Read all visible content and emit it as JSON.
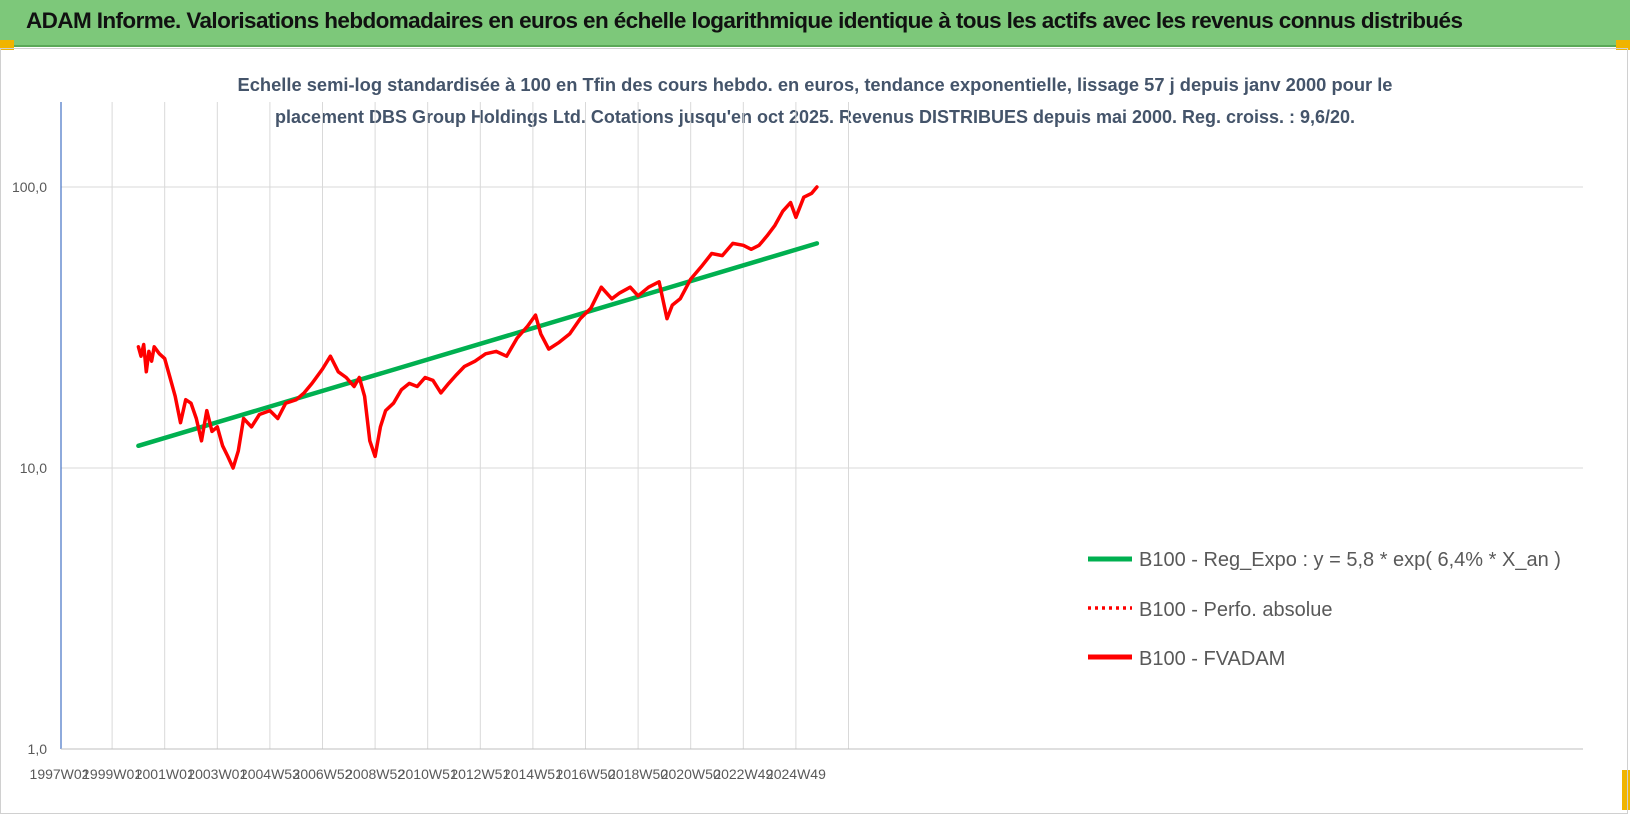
{
  "header": {
    "title": "ADAM Informe. Valorisations hebdomadaires en euros en échelle logarithmique identique à tous les actifs avec les revenus connus distribués"
  },
  "colors": {
    "header_bg": "#7dc87a",
    "regression": "#00b050",
    "perf": "#ff0000",
    "fvadam": "#ff0000"
  },
  "chart_data": {
    "type": "line",
    "title": "",
    "subtitle_lines": [
      "Echelle semi-log standardisée à 100 en Tfin des cours hebdo. en euros, tendance exponentielle, lissage 57 j depuis janv 2000 pour le",
      "placement DBS Group Holdings Ltd. Cotations jusqu'en oct 2025. Revenus DISTRIBUES depuis mai 2000. Reg. croiss. : 9,6/20."
    ],
    "y_scale": "log",
    "ylim": [
      1,
      200
    ],
    "y_ticks": [
      "1,0",
      "10,0",
      "100,0"
    ],
    "x_ticks": [
      "1997W02",
      "1999W01",
      "2001W01",
      "2003W01",
      "2004W53",
      "2006W52",
      "2008W52",
      "2010W51",
      "2012W51",
      "2014W51",
      "2016W50",
      "2018W50",
      "2020W50",
      "2022W49",
      "2024W49"
    ],
    "legend_position": "bottom-right",
    "grid": true,
    "series": [
      {
        "name": "B100 - Reg_Expo : y = 5,8 * exp( 6,4% *  X_an )",
        "style": "solid",
        "x": [
          2000.0,
          2025.8
        ],
        "y": [
          12.0,
          63.0
        ]
      },
      {
        "name": "B100 - Perfo. absolue",
        "style": "dotted",
        "x": [],
        "y": []
      },
      {
        "name": "B100 - FVADAM",
        "style": "solid",
        "x": [
          2000.0,
          2000.1,
          2000.2,
          2000.3,
          2000.4,
          2000.5,
          2000.6,
          2000.8,
          2001.0,
          2001.2,
          2001.4,
          2001.6,
          2001.8,
          2002.0,
          2002.2,
          2002.4,
          2002.6,
          2002.8,
          2003.0,
          2003.2,
          2003.4,
          2003.6,
          2003.8,
          2004.0,
          2004.3,
          2004.6,
          2005.0,
          2005.3,
          2005.6,
          2006.0,
          2006.3,
          2006.6,
          2007.0,
          2007.3,
          2007.6,
          2007.9,
          2008.2,
          2008.4,
          2008.6,
          2008.8,
          2009.0,
          2009.2,
          2009.4,
          2009.7,
          2010.0,
          2010.3,
          2010.6,
          2010.9,
          2011.2,
          2011.5,
          2011.8,
          2012.1,
          2012.4,
          2012.8,
          2013.2,
          2013.6,
          2014.0,
          2014.4,
          2014.8,
          2015.1,
          2015.3,
          2015.6,
          2016.0,
          2016.4,
          2016.8,
          2017.2,
          2017.6,
          2018.0,
          2018.3,
          2018.7,
          2019.0,
          2019.4,
          2019.8,
          2020.1,
          2020.3,
          2020.6,
          2021.0,
          2021.4,
          2021.8,
          2022.2,
          2022.6,
          2023.0,
          2023.3,
          2023.6,
          2023.9,
          2024.2,
          2024.5,
          2024.8,
          2025.0,
          2025.3,
          2025.6,
          2025.8
        ],
        "y": [
          27.0,
          25.0,
          27.5,
          22.0,
          26.0,
          24.0,
          27.0,
          25.5,
          24.5,
          21.0,
          18.0,
          14.5,
          17.5,
          17.0,
          15.0,
          12.5,
          16.0,
          13.5,
          14.0,
          12.0,
          11.0,
          10.0,
          11.5,
          15.0,
          14.0,
          15.5,
          16.0,
          15.0,
          17.0,
          17.5,
          18.5,
          20.0,
          22.5,
          25.0,
          22.0,
          21.0,
          19.5,
          21.0,
          18.0,
          12.5,
          11.0,
          14.0,
          16.0,
          17.0,
          19.0,
          20.0,
          19.5,
          21.0,
          20.5,
          18.5,
          20.0,
          21.5,
          23.0,
          24.0,
          25.5,
          26.0,
          25.0,
          29.0,
          32.0,
          35.0,
          30.0,
          26.5,
          28.0,
          30.0,
          34.0,
          37.0,
          44.0,
          40.0,
          42.0,
          44.0,
          41.0,
          44.0,
          46.0,
          34.0,
          38.0,
          40.0,
          47.0,
          52.0,
          58.0,
          57.0,
          63.0,
          62.0,
          60.0,
          62.0,
          67.0,
          73.0,
          82.0,
          88.0,
          78.0,
          92.0,
          95.0,
          100.0
        ]
      }
    ]
  }
}
